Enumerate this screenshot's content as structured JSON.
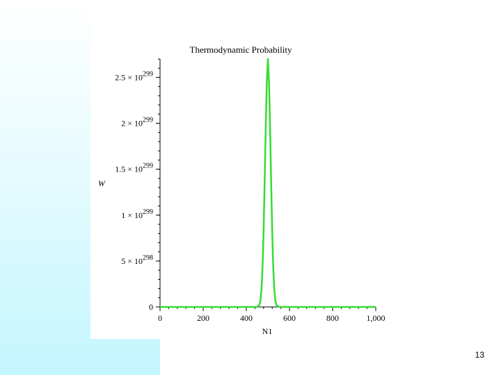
{
  "slide": {
    "page_number": "13"
  },
  "chart_data": {
    "type": "line",
    "title": "Thermodynamic Probability",
    "xlabel": "N1",
    "ylabel": "W",
    "xlim": [
      0,
      1000
    ],
    "ylim": [
      0,
      2.7e+299
    ],
    "x_ticks": [
      {
        "value": 0,
        "label": "0"
      },
      {
        "value": 200,
        "label": "200"
      },
      {
        "value": 400,
        "label": "400"
      },
      {
        "value": 600,
        "label": "600"
      },
      {
        "value": 800,
        "label": "800"
      },
      {
        "value": 1000,
        "label": "1,000"
      }
    ],
    "y_ticks": [
      {
        "value": 0,
        "mantissa": "0",
        "exponent": ""
      },
      {
        "value": 5e+298,
        "mantissa": "5 × 10",
        "exponent": "298"
      },
      {
        "value": 1e+299,
        "mantissa": "1 × 10",
        "exponent": "299"
      },
      {
        "value": 1.5e+299,
        "mantissa": "1.5 × 10",
        "exponent": "299"
      },
      {
        "value": 2e+299,
        "mantissa": "2 × 10",
        "exponent": "299"
      },
      {
        "value": 2.5e+299,
        "mantissa": "2.5 × 10",
        "exponent": "299"
      }
    ],
    "series": [
      {
        "color": "#33dd33",
        "x": [
          0,
          400,
          440,
          450,
          460,
          465,
          470,
          475,
          480,
          485,
          490,
          495,
          500,
          505,
          510,
          515,
          520,
          525,
          530,
          535,
          540,
          550,
          560,
          600,
          1000
        ],
        "y": [
          0,
          0,
          0,
          1e+296,
          2.1e+297,
          6e+297,
          1.8e+298,
          4.2e+298,
          8.2e+298,
          1.37e+299,
          1.96e+299,
          2.45e+299,
          2.7e+299,
          2.45e+299,
          1.96e+299,
          1.37e+299,
          8.2e+298,
          4.2e+298,
          1.8e+298,
          6e+297,
          2.1e+297,
          1e+296,
          0,
          0,
          0
        ]
      }
    ],
    "grid": false,
    "legend": "none"
  }
}
